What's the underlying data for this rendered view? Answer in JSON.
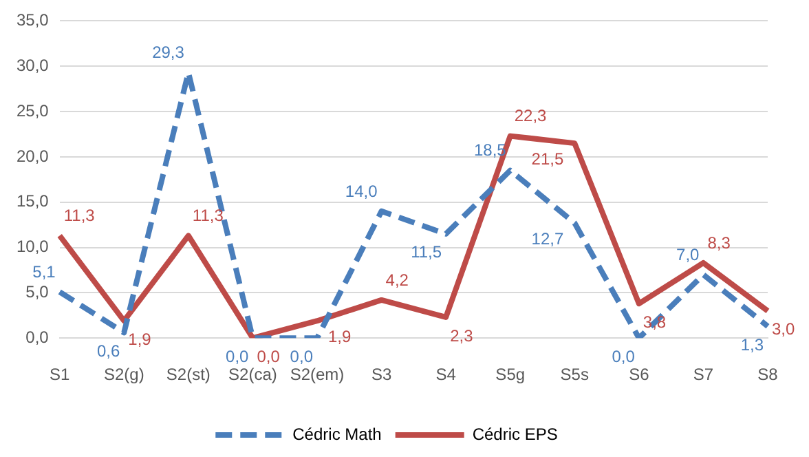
{
  "chart_data": {
    "type": "line",
    "categories": [
      "S1",
      "S2(g)",
      "S2(st)",
      "S2(ca)",
      "S2(em)",
      "S3",
      "S4",
      "S5g",
      "S5s",
      "S6",
      "S7",
      "S8"
    ],
    "series": [
      {
        "name": "Cédric Math",
        "color": "#4a7ebb",
        "line_style": "dashed",
        "values": [
          5.1,
          0.6,
          29.3,
          0.0,
          0.0,
          14.0,
          11.5,
          18.5,
          12.7,
          0.0,
          7.0,
          1.3
        ],
        "value_labels": [
          "5,1",
          "0,6",
          "29,3",
          "0,0",
          "0,0",
          "14,0",
          "11,5",
          "18,5",
          "12,7",
          "0,0",
          "7,0",
          "1,3"
        ]
      },
      {
        "name": "Cédric EPS",
        "color": "#be4b48",
        "line_style": "solid",
        "values": [
          11.3,
          1.9,
          11.3,
          0.0,
          1.9,
          4.2,
          2.3,
          22.3,
          21.5,
          3.8,
          8.3,
          3.0
        ],
        "value_labels": [
          "11,3",
          "1,9",
          "11,3",
          "0,0",
          "1,9",
          "4,2",
          "2,3",
          "22,3",
          "21,5",
          "3,8",
          "8,3",
          "3,0"
        ]
      }
    ],
    "ylim": [
      0,
      35
    ],
    "yticks": [
      {
        "value": 0,
        "label": "0,0"
      },
      {
        "value": 5,
        "label": "5,0"
      },
      {
        "value": 10,
        "label": "10,0"
      },
      {
        "value": 15,
        "label": "15,0"
      },
      {
        "value": 20,
        "label": "20,0"
      },
      {
        "value": 25,
        "label": "25,0"
      },
      {
        "value": 30,
        "label": "30,0"
      },
      {
        "value": 35,
        "label": "35,0"
      }
    ],
    "grid": "y",
    "legend": "bottom",
    "marker": "none"
  }
}
